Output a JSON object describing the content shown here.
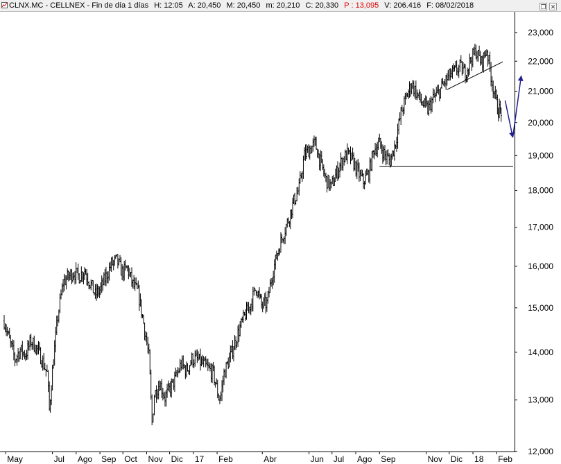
{
  "header": {
    "symbol": "CLNX.MC - CELLNEX - Fin de día 1 días",
    "fields": [
      {
        "label": "H:",
        "value": "12:05"
      },
      {
        "label": "A:",
        "value": "20,450"
      },
      {
        "label": "M:",
        "value": "20,450"
      },
      {
        "label": "m:",
        "value": "20,210"
      },
      {
        "label": "C:",
        "value": "20,330"
      },
      {
        "label": "P :",
        "value": "13,095",
        "highlight": true
      },
      {
        "label": "V:",
        "value": "206.416"
      },
      {
        "label": "F:",
        "value": "08/02/2018"
      }
    ],
    "window_controls": [
      "restore-icon",
      "close-icon"
    ]
  },
  "chart_data": {
    "type": "line",
    "style": "ohlc-bars",
    "title": "",
    "xlabel": "",
    "ylabel": "",
    "ylim": [
      12,
      23
    ],
    "y_scale": "log",
    "yticks": [
      "12,000",
      "13,000",
      "14,000",
      "15,000",
      "16,000",
      "17,000",
      "18,000",
      "19,000",
      "20,000",
      "21,000",
      "22,000",
      "23,000"
    ],
    "xticks": [
      "May",
      "Jul",
      "Ago",
      "Sep",
      "Oct",
      "Nov",
      "Dic",
      "17",
      "Feb",
      "Abr",
      "Jun",
      "Jul",
      "Ago",
      "Sep",
      "Nov",
      "Dic",
      "18",
      "Feb"
    ],
    "grid": false,
    "series": [
      {
        "color": "#000000",
        "x": [
          "2016-04-29",
          "2016-05-06",
          "2016-05-13",
          "2016-05-20",
          "2016-05-27",
          "2016-06-03",
          "2016-06-10",
          "2016-06-17",
          "2016-06-24",
          "2016-06-27",
          "2016-07-01",
          "2016-07-08",
          "2016-07-15",
          "2016-07-22",
          "2016-07-29",
          "2016-08-05",
          "2016-08-12",
          "2016-08-19",
          "2016-08-26",
          "2016-09-02",
          "2016-09-09",
          "2016-09-16",
          "2016-09-23",
          "2016-09-30",
          "2016-10-07",
          "2016-10-14",
          "2016-10-21",
          "2016-10-28",
          "2016-11-04",
          "2016-11-08",
          "2016-11-11",
          "2016-11-18",
          "2016-11-25",
          "2016-12-02",
          "2016-12-09",
          "2016-12-16",
          "2016-12-23",
          "2016-12-30",
          "2017-01-06",
          "2017-01-13",
          "2017-01-20",
          "2017-01-27",
          "2017-02-03",
          "2017-02-06",
          "2017-02-10",
          "2017-02-17",
          "2017-02-24",
          "2017-03-03",
          "2017-03-10",
          "2017-03-17",
          "2017-03-24",
          "2017-03-31",
          "2017-04-07",
          "2017-04-14",
          "2017-04-21",
          "2017-04-28",
          "2017-05-05",
          "2017-05-12",
          "2017-05-19",
          "2017-05-26",
          "2017-06-02",
          "2017-06-09",
          "2017-06-16",
          "2017-06-23",
          "2017-06-30",
          "2017-07-07",
          "2017-07-14",
          "2017-07-21",
          "2017-07-28",
          "2017-08-04",
          "2017-08-11",
          "2017-08-18",
          "2017-08-25",
          "2017-09-01",
          "2017-09-08",
          "2017-09-15",
          "2017-09-22",
          "2017-09-29",
          "2017-10-06",
          "2017-10-13",
          "2017-10-20",
          "2017-10-27",
          "2017-11-03",
          "2017-11-10",
          "2017-11-17",
          "2017-11-24",
          "2017-12-01",
          "2017-12-08",
          "2017-12-15",
          "2017-12-22",
          "2017-12-29",
          "2018-01-05",
          "2018-01-12",
          "2018-01-19",
          "2018-01-26",
          "2018-02-02",
          "2018-02-08"
        ],
        "values": [
          14.7,
          14.25,
          13.85,
          14.05,
          13.95,
          14.25,
          14.1,
          13.85,
          13.55,
          12.8,
          13.6,
          14.8,
          15.6,
          15.75,
          15.85,
          15.75,
          15.9,
          15.6,
          15.3,
          15.45,
          15.75,
          16.05,
          16.15,
          15.85,
          15.95,
          15.55,
          15.35,
          14.65,
          13.9,
          12.55,
          13.1,
          13.35,
          13.05,
          13.25,
          13.45,
          13.75,
          13.6,
          13.85,
          13.85,
          13.75,
          13.65,
          13.55,
          13.05,
          13.1,
          13.55,
          13.85,
          14.2,
          14.55,
          14.85,
          15.1,
          15.5,
          15.05,
          15.1,
          15.8,
          16.35,
          16.8,
          17.2,
          17.7,
          18.05,
          19.0,
          19.2,
          19.35,
          18.8,
          18.3,
          18.1,
          18.5,
          18.85,
          19.05,
          18.85,
          18.5,
          18.25,
          18.5,
          19.2,
          19.35,
          19.0,
          18.85,
          19.4,
          20.3,
          20.8,
          21.25,
          20.9,
          20.6,
          20.4,
          20.75,
          20.95,
          21.25,
          21.5,
          21.65,
          21.8,
          21.6,
          22.05,
          22.35,
          21.95,
          22.4,
          21.3,
          20.45,
          20.33
        ]
      }
    ],
    "annotations": [
      {
        "kind": "trendline",
        "color": "#000000",
        "from": [
          "2017-11-28",
          21.05
        ],
        "to": [
          "2018-02-09",
          21.98
        ]
      },
      {
        "kind": "horizontal-line",
        "color": "#000000",
        "value": 18.68,
        "from": "2017-09-01",
        "to": "2018-03-15"
      },
      {
        "kind": "projection-arrow-down",
        "color": "#1f1f8f",
        "from": [
          "2018-02-12",
          20.7
        ],
        "to": [
          "2018-02-22",
          19.55
        ]
      },
      {
        "kind": "projection-arrow-up",
        "color": "#1f1f8f",
        "from": [
          "2018-02-22",
          19.55
        ],
        "to": [
          "2018-03-05",
          21.5
        ]
      }
    ]
  }
}
